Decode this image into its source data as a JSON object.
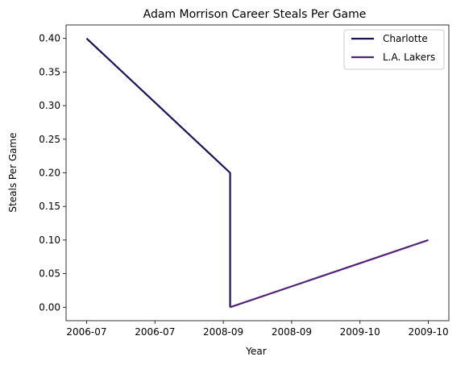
{
  "chart_data": {
    "type": "line",
    "title": "Adam Morrison Career Steals Per Game",
    "xlabel": "Year",
    "ylabel": "Steals Per Game",
    "x_ticks": [
      "2006-07",
      "2006-07",
      "2008-09",
      "2008-09",
      "2009-10",
      "2009-10"
    ],
    "y_ticks": [
      "0.00",
      "0.05",
      "0.10",
      "0.15",
      "0.20",
      "0.25",
      "0.30",
      "0.35",
      "0.40"
    ],
    "ylim": [
      -0.02,
      0.42
    ],
    "series": [
      {
        "name": "Charlotte",
        "color": "#1f1158",
        "points": [
          {
            "x": 0,
            "y": 0.4
          },
          {
            "x": 2.1,
            "y": 0.2
          },
          {
            "x": 2.1,
            "y": 0.0
          }
        ]
      },
      {
        "name": "L.A. Lakers",
        "color": "#51247a",
        "points": [
          {
            "x": 2.1,
            "y": 0.0
          },
          {
            "x": 5,
            "y": 0.1
          }
        ]
      }
    ],
    "legend_position": "top-right",
    "grid": false
  }
}
